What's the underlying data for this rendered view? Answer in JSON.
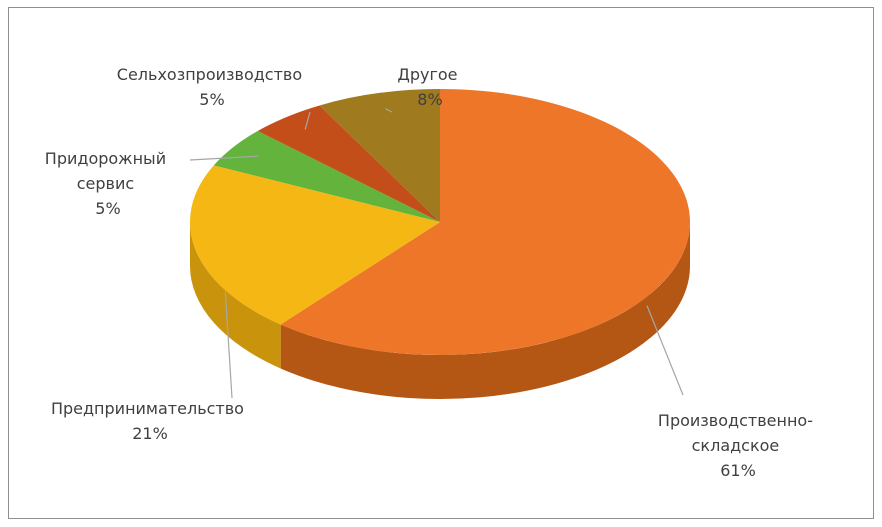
{
  "chart_data": {
    "type": "pie",
    "style": "3d",
    "slices": [
      {
        "label_lines": [
          "Производственно-",
          "складское"
        ],
        "value": 61,
        "value_label": "61%",
        "color": "#ee7629",
        "side_color": "#b45614"
      },
      {
        "label_lines": [
          "Предпринимательство"
        ],
        "value": 21,
        "value_label": "21%",
        "color": "#f5b714",
        "side_color": "#c9940b"
      },
      {
        "label_lines": [
          "Придорожный",
          "сервис"
        ],
        "value": 5,
        "value_label": "5%",
        "color": "#63b33c",
        "side_color": "#468629"
      },
      {
        "label_lines": [
          "Сельхозпроизводство"
        ],
        "value": 5,
        "value_label": "5%",
        "color": "#c34e1a",
        "side_color": "#8e3610"
      },
      {
        "label_lines": [
          "Другое"
        ],
        "value": 8,
        "value_label": "8%",
        "color": "#9f7a1f",
        "side_color": "#725512"
      }
    ]
  }
}
